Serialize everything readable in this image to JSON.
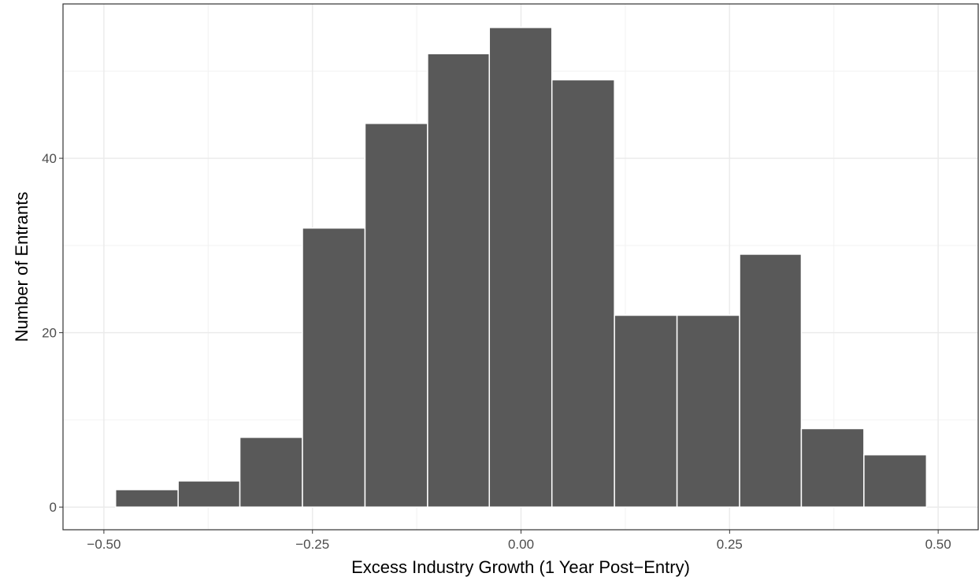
{
  "chart_data": {
    "type": "histogram",
    "x_label": "Excess Industry Growth (1 Year Post−Entry)",
    "y_label": "Number of Entrants",
    "bins": [
      -0.486,
      -0.411,
      -0.337,
      -0.262,
      -0.187,
      -0.112,
      -0.038,
      0.037,
      0.112,
      0.187,
      0.262,
      0.336,
      0.411,
      0.486
    ],
    "counts": [
      2,
      3,
      8,
      32,
      44,
      52,
      55,
      49,
      22,
      22,
      29,
      9,
      6
    ],
    "color": "#595959",
    "xlim": [
      -0.549,
      0.548
    ],
    "ylim": [
      -2.6,
      57.7
    ],
    "xticks": [
      {
        "value": -0.5,
        "label": "−0.50"
      },
      {
        "value": -0.25,
        "label": "−0.25"
      },
      {
        "value": 0,
        "label": "0.00"
      },
      {
        "value": 0.25,
        "label": "0.25"
      },
      {
        "value": 0.5,
        "label": "0.50"
      }
    ],
    "yticks": [
      0,
      20,
      40
    ],
    "grid": true
  }
}
